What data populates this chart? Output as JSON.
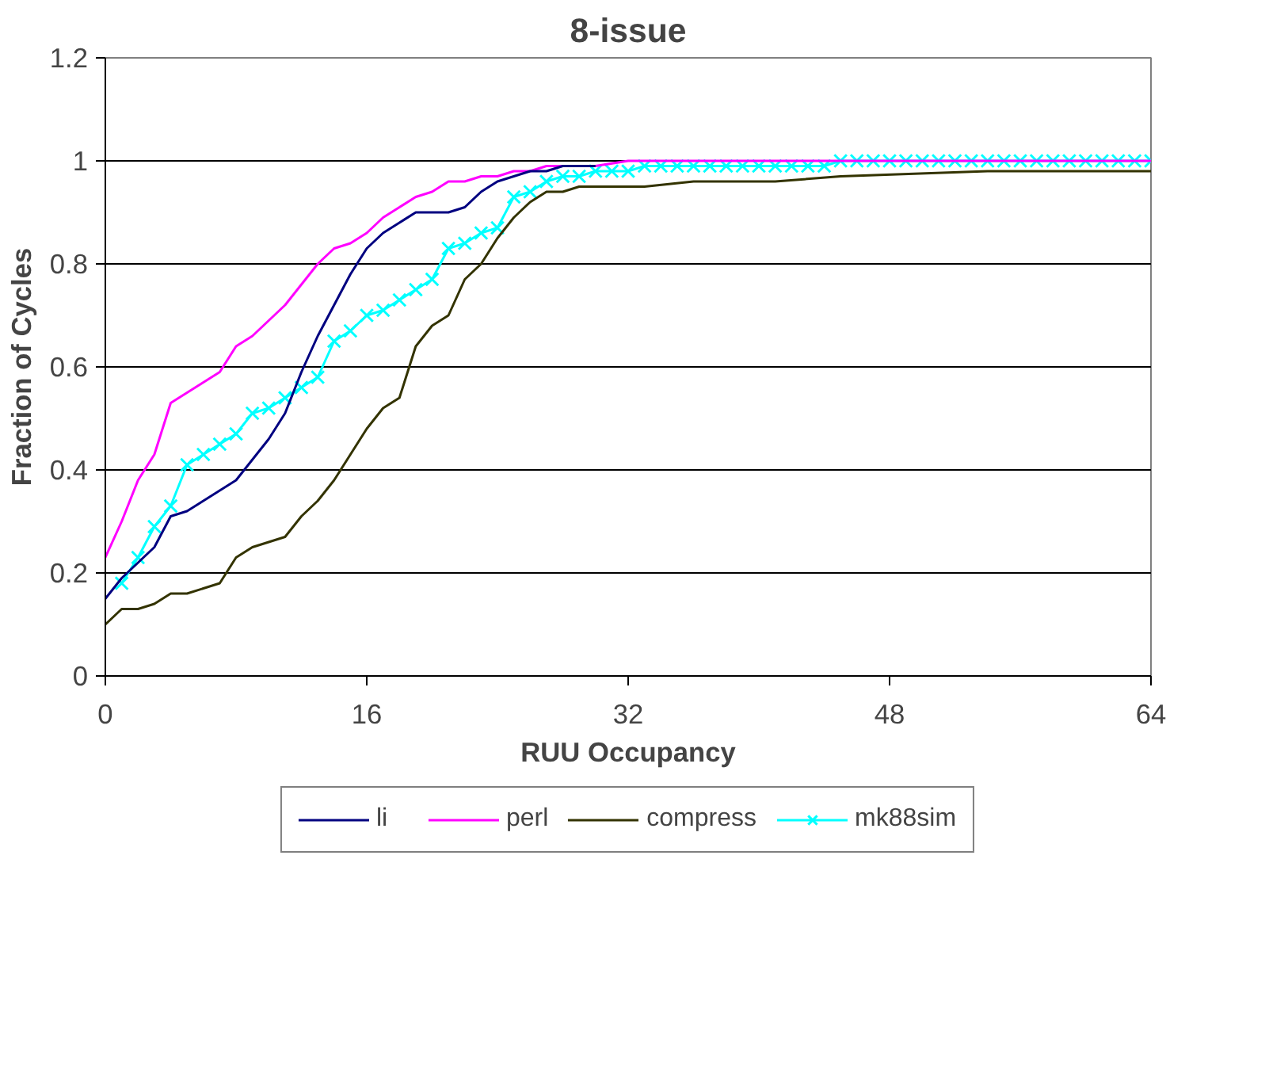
{
  "chart_data": {
    "type": "line",
    "title": "8-issue",
    "xlabel": "RUU Occupancy",
    "ylabel": "Fraction of Cycles",
    "xlim": [
      0,
      64
    ],
    "xticks": [
      0,
      16,
      32,
      48,
      64
    ],
    "ylim": [
      0,
      1.2
    ],
    "yticks": [
      0,
      0.2,
      0.4,
      0.6,
      0.8,
      1,
      1.2
    ],
    "grid": "y",
    "legend": "bottom",
    "marker": "none",
    "line_style": "solid",
    "series": [
      {
        "name": "li",
        "color": "#000080",
        "x": [
          0,
          1,
          2,
          3,
          4,
          5,
          6,
          7,
          8,
          9,
          10,
          11,
          12,
          13,
          14,
          15,
          16,
          17,
          18,
          19,
          20,
          21,
          22,
          23,
          24,
          25,
          26,
          27,
          28,
          30
        ],
        "values": [
          0.15,
          0.19,
          0.22,
          0.25,
          0.31,
          0.32,
          0.34,
          0.36,
          0.38,
          0.42,
          0.46,
          0.51,
          0.59,
          0.66,
          0.72,
          0.78,
          0.83,
          0.86,
          0.88,
          0.9,
          0.9,
          0.9,
          0.91,
          0.94,
          0.96,
          0.97,
          0.98,
          0.98,
          0.99,
          0.99
        ]
      },
      {
        "name": "perl",
        "color": "#ff00ff",
        "x": [
          0,
          1,
          2,
          3,
          4,
          5,
          6,
          7,
          8,
          9,
          10,
          11,
          12,
          13,
          14,
          15,
          16,
          17,
          18,
          19,
          20,
          21,
          22,
          23,
          24,
          25,
          26,
          27,
          28,
          30,
          32,
          64
        ],
        "values": [
          0.23,
          0.3,
          0.38,
          0.43,
          0.53,
          0.55,
          0.57,
          0.59,
          0.64,
          0.66,
          0.69,
          0.72,
          0.76,
          0.8,
          0.83,
          0.84,
          0.86,
          0.89,
          0.91,
          0.93,
          0.94,
          0.96,
          0.96,
          0.97,
          0.97,
          0.98,
          0.98,
          0.99,
          0.99,
          0.99,
          1,
          1
        ]
      },
      {
        "name": "compress",
        "color": "#333300",
        "x": [
          0,
          1,
          2,
          3,
          4,
          5,
          6,
          7,
          8,
          9,
          10,
          11,
          12,
          13,
          14,
          15,
          16,
          17,
          18,
          19,
          20,
          21,
          22,
          23,
          24,
          25,
          26,
          27,
          28,
          29,
          33,
          36,
          41,
          45,
          54,
          64
        ],
        "values": [
          0.1,
          0.13,
          0.13,
          0.14,
          0.16,
          0.16,
          0.17,
          0.18,
          0.23,
          0.25,
          0.26,
          0.27,
          0.31,
          0.34,
          0.38,
          0.43,
          0.48,
          0.52,
          0.54,
          0.64,
          0.68,
          0.7,
          0.77,
          0.8,
          0.85,
          0.89,
          0.92,
          0.94,
          0.94,
          0.95,
          0.95,
          0.96,
          0.96,
          0.97,
          0.98,
          0.98
        ]
      },
      {
        "name": "mk88sim",
        "color": "#00ffff",
        "marker": "cross",
        "x": [
          1,
          2,
          3,
          4,
          5,
          6,
          7,
          8,
          9,
          10,
          11,
          12,
          13,
          14,
          15,
          16,
          17,
          18,
          19,
          20,
          21,
          22,
          23,
          24,
          25,
          26,
          27,
          28,
          29,
          30,
          31,
          32,
          33,
          34,
          35,
          36,
          37,
          38,
          39,
          40,
          41,
          42,
          43,
          44,
          45,
          46,
          47,
          48,
          49,
          50,
          51,
          52,
          53,
          54,
          55,
          56,
          57,
          58,
          59,
          60,
          61,
          62,
          63,
          64
        ],
        "values": [
          0.18,
          0.23,
          0.29,
          0.33,
          0.41,
          0.43,
          0.45,
          0.47,
          0.51,
          0.52,
          0.54,
          0.56,
          0.58,
          0.65,
          0.67,
          0.7,
          0.71,
          0.73,
          0.75,
          0.77,
          0.83,
          0.84,
          0.86,
          0.87,
          0.93,
          0.94,
          0.96,
          0.97,
          0.97,
          0.98,
          0.98,
          0.98,
          0.99,
          0.99,
          0.99,
          0.99,
          0.99,
          0.99,
          0.99,
          0.99,
          0.99,
          0.99,
          0.99,
          0.99,
          1,
          1,
          1,
          1,
          1,
          1,
          1,
          1,
          1,
          1,
          1,
          1,
          1,
          1,
          1,
          1,
          1,
          1,
          1,
          1
        ]
      }
    ]
  }
}
